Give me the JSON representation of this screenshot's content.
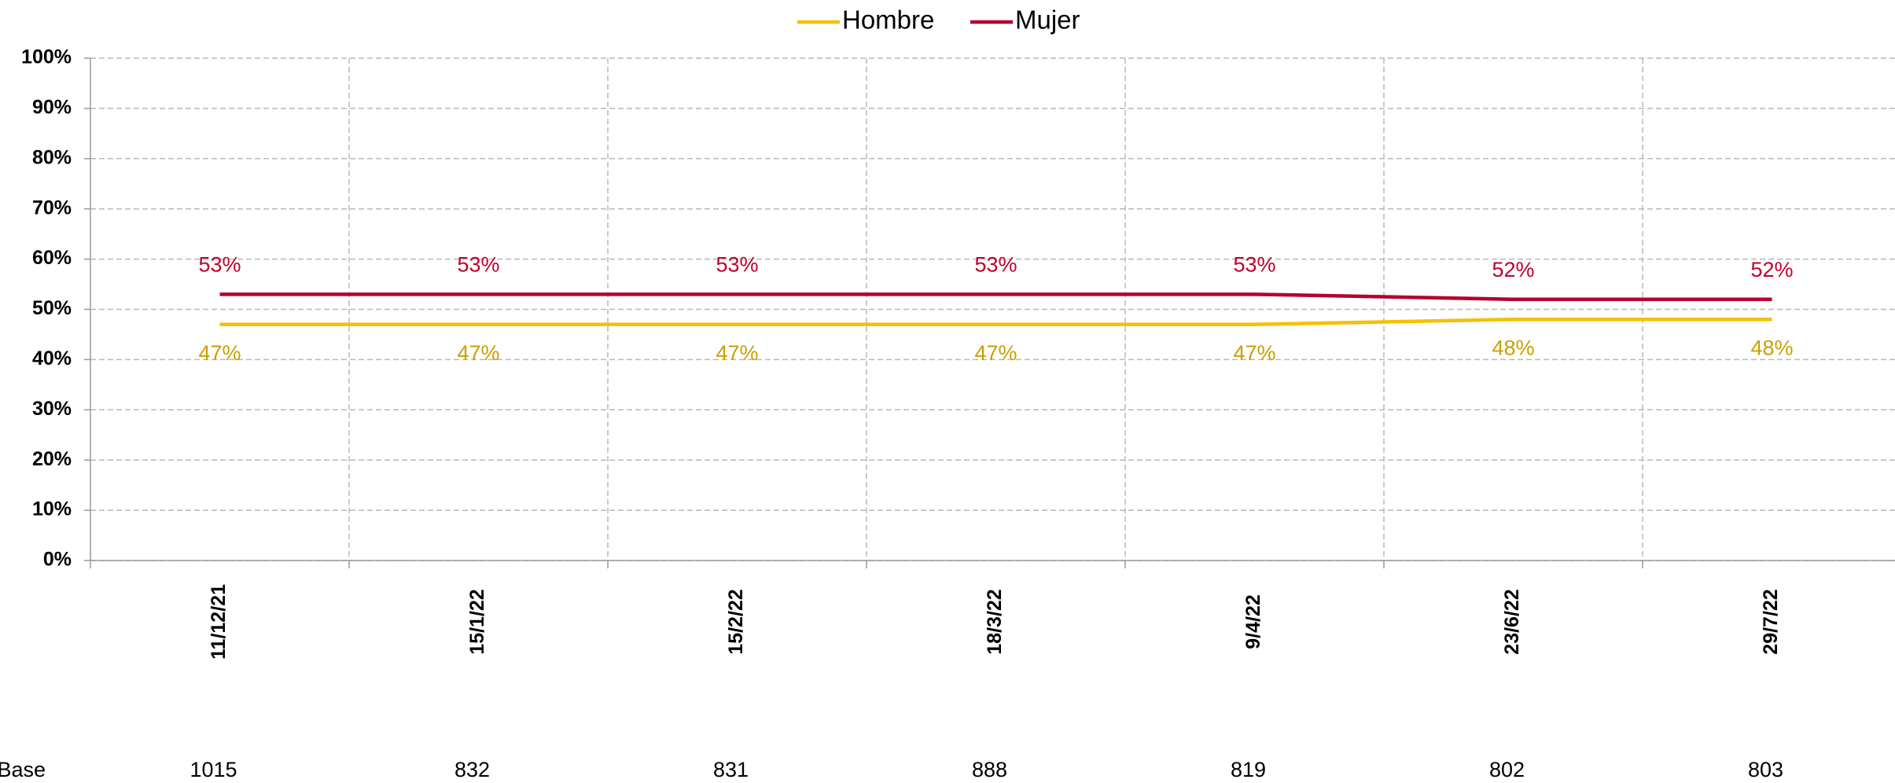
{
  "chart_data": {
    "type": "line",
    "categories": [
      "11/12/21",
      "15/1/22",
      "15/2/22",
      "18/3/22",
      "9/4/22",
      "23/6/22",
      "29/7/22"
    ],
    "series": [
      {
        "name": "Hombre",
        "color": "#f5c000",
        "label_color": "#c8a000",
        "values": [
          47,
          47,
          47,
          47,
          47,
          48,
          48
        ],
        "value_labels": [
          "47%",
          "47%",
          "47%",
          "47%",
          "47%",
          "48%",
          "48%"
        ]
      },
      {
        "name": "Mujer",
        "color": "#b5002d",
        "label_color": "#c0002d",
        "values": [
          53,
          53,
          53,
          53,
          53,
          52,
          52
        ],
        "value_labels": [
          "53%",
          "53%",
          "53%",
          "53%",
          "53%",
          "52%",
          "52%"
        ]
      }
    ],
    "ylim": [
      0,
      100
    ],
    "yticks": [
      {
        "value": 0,
        "label": "0%"
      },
      {
        "value": 10,
        "label": "10%"
      },
      {
        "value": 20,
        "label": "20%"
      },
      {
        "value": 30,
        "label": "30%"
      },
      {
        "value": 40,
        "label": "40%"
      },
      {
        "value": 50,
        "label": "50%"
      },
      {
        "value": 60,
        "label": "60%"
      },
      {
        "value": 70,
        "label": "70%"
      },
      {
        "value": 80,
        "label": "80%"
      },
      {
        "value": 90,
        "label": "90%"
      },
      {
        "value": 100,
        "label": "100%"
      }
    ],
    "grid": true,
    "legend": "top",
    "base": {
      "label": "Base",
      "values": [
        1015,
        832,
        831,
        888,
        819,
        802,
        803
      ]
    }
  }
}
